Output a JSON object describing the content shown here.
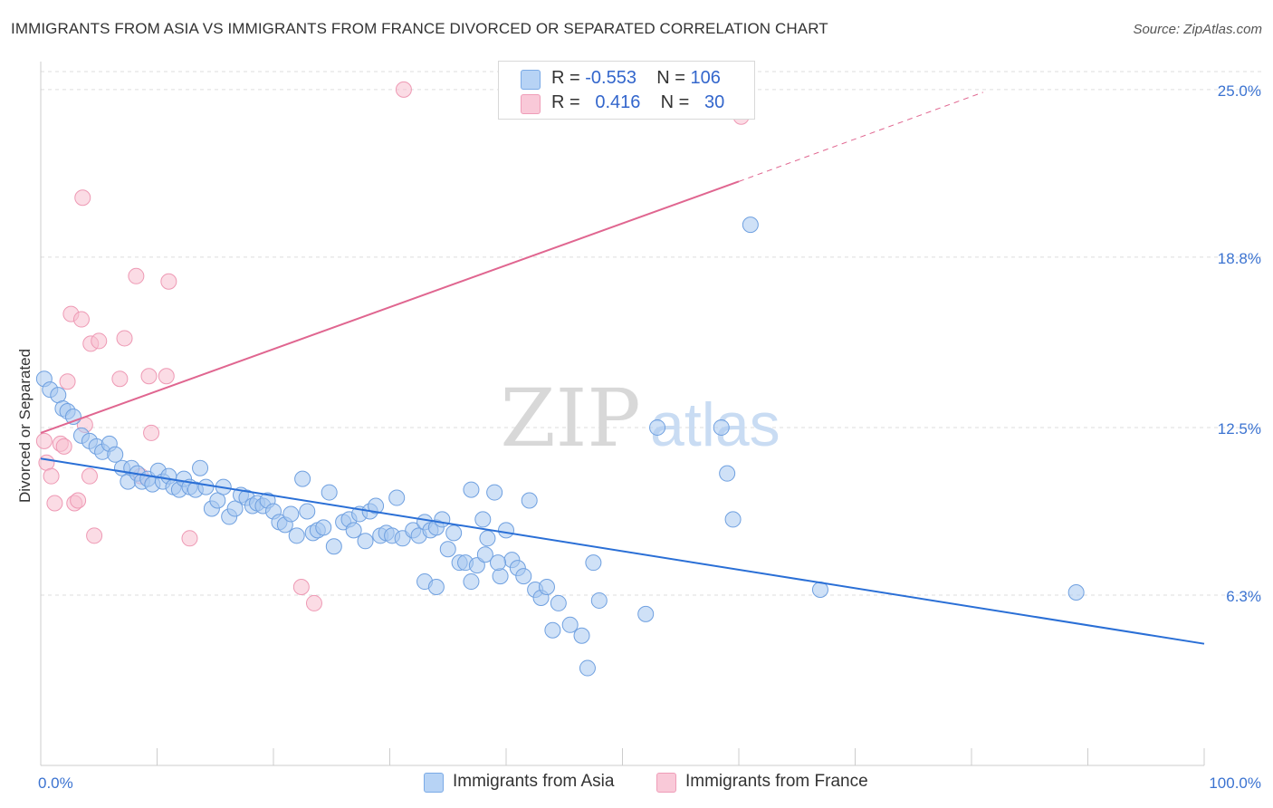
{
  "header": {
    "title": "IMMIGRANTS FROM ASIA VS IMMIGRANTS FROM FRANCE DIVORCED OR SEPARATED CORRELATION CHART",
    "source": "Source: ZipAtlas.com"
  },
  "watermark": {
    "zip": "ZIP",
    "atlas": "atlas"
  },
  "legend": {
    "asia": {
      "r_label": "R =",
      "r_value": "-0.553",
      "n_label": "N =",
      "n_value": "106"
    },
    "france": {
      "r_label": "R =",
      "r_value": "0.416",
      "n_label": "N =",
      "n_value": "30"
    }
  },
  "bottom_legend": {
    "asia": "Immigrants from Asia",
    "france": "Immigrants from France"
  },
  "colors": {
    "asia_fill": "#a8c8f0",
    "asia_stroke": "#6fa0e0",
    "asia_line": "#2a6fd6",
    "france_fill": "#f7bfd0",
    "france_stroke": "#ee99b4",
    "france_line": "#e06690",
    "axis_text": "#3b73d1",
    "grid": "#dddddd"
  },
  "chart_data": {
    "type": "scatter",
    "title": "IMMIGRANTS FROM ASIA VS IMMIGRANTS FROM FRANCE DIVORCED OR SEPARATED CORRELATION CHART",
    "xlabel": "",
    "ylabel": "Divorced or Separated",
    "xlim": [
      0,
      100
    ],
    "ylim": [
      0,
      25.8
    ],
    "x_tick_labels": [
      "0.0%",
      "100.0%"
    ],
    "y_ticks": [
      6.3,
      12.5,
      18.8,
      25.0
    ],
    "y_tick_labels": [
      "6.3%",
      "12.5%",
      "18.8%",
      "25.0%"
    ],
    "grid": true,
    "legend_position": "top-center",
    "series": [
      {
        "name": "Immigrants from Asia",
        "R": -0.553,
        "N": 106,
        "trend": {
          "x": [
            0,
            100
          ],
          "y": [
            11.35,
            4.5
          ]
        },
        "points": [
          [
            0.3,
            14.3
          ],
          [
            0.8,
            13.9
          ],
          [
            1.5,
            13.7
          ],
          [
            1.9,
            13.2
          ],
          [
            2.3,
            13.1
          ],
          [
            2.8,
            12.9
          ],
          [
            3.5,
            12.2
          ],
          [
            4.2,
            12.0
          ],
          [
            4.8,
            11.8
          ],
          [
            5.3,
            11.6
          ],
          [
            5.9,
            11.9
          ],
          [
            6.4,
            11.5
          ],
          [
            7.0,
            11.0
          ],
          [
            7.5,
            10.5
          ],
          [
            7.8,
            11.0
          ],
          [
            8.3,
            10.8
          ],
          [
            8.7,
            10.5
          ],
          [
            9.2,
            10.6
          ],
          [
            9.6,
            10.4
          ],
          [
            10.1,
            10.9
          ],
          [
            10.5,
            10.5
          ],
          [
            11.0,
            10.7
          ],
          [
            11.4,
            10.3
          ],
          [
            11.9,
            10.2
          ],
          [
            12.3,
            10.6
          ],
          [
            12.8,
            10.3
          ],
          [
            13.3,
            10.2
          ],
          [
            13.7,
            11.0
          ],
          [
            14.2,
            10.3
          ],
          [
            14.7,
            9.5
          ],
          [
            15.2,
            9.8
          ],
          [
            15.7,
            10.3
          ],
          [
            16.2,
            9.2
          ],
          [
            16.7,
            9.5
          ],
          [
            17.2,
            10.0
          ],
          [
            17.7,
            9.9
          ],
          [
            18.2,
            9.6
          ],
          [
            18.6,
            9.7
          ],
          [
            19.1,
            9.6
          ],
          [
            19.5,
            9.8
          ],
          [
            20.0,
            9.4
          ],
          [
            20.5,
            9.0
          ],
          [
            21.0,
            8.9
          ],
          [
            21.5,
            9.3
          ],
          [
            22.0,
            8.5
          ],
          [
            22.5,
            10.6
          ],
          [
            22.9,
            9.4
          ],
          [
            23.4,
            8.6
          ],
          [
            23.8,
            8.7
          ],
          [
            24.3,
            8.8
          ],
          [
            24.8,
            10.1
          ],
          [
            25.2,
            8.1
          ],
          [
            26.0,
            9.0
          ],
          [
            26.5,
            9.1
          ],
          [
            26.9,
            8.7
          ],
          [
            27.4,
            9.3
          ],
          [
            27.9,
            8.3
          ],
          [
            28.3,
            9.4
          ],
          [
            28.8,
            9.6
          ],
          [
            29.2,
            8.5
          ],
          [
            29.7,
            8.6
          ],
          [
            30.2,
            8.5
          ],
          [
            30.6,
            9.9
          ],
          [
            31.1,
            8.4
          ],
          [
            32.0,
            8.7
          ],
          [
            32.5,
            8.5
          ],
          [
            33.0,
            9.0
          ],
          [
            33.5,
            8.7
          ],
          [
            34.0,
            8.8
          ],
          [
            34.5,
            9.1
          ],
          [
            35.0,
            8.0
          ],
          [
            35.5,
            8.6
          ],
          [
            36.0,
            7.5
          ],
          [
            36.5,
            7.5
          ],
          [
            37.0,
            6.8
          ],
          [
            37.5,
            7.4
          ],
          [
            38.0,
            9.1
          ],
          [
            38.4,
            8.4
          ],
          [
            39.0,
            10.1
          ],
          [
            39.5,
            7.0
          ],
          [
            40.0,
            8.7
          ],
          [
            40.5,
            7.6
          ],
          [
            41.0,
            7.3
          ],
          [
            41.5,
            7.0
          ],
          [
            42.0,
            9.8
          ],
          [
            42.5,
            6.5
          ],
          [
            43.0,
            6.2
          ],
          [
            43.5,
            6.6
          ],
          [
            44.0,
            5.0
          ],
          [
            44.5,
            6.0
          ],
          [
            33.0,
            6.8
          ],
          [
            34.0,
            6.6
          ],
          [
            37.0,
            10.2
          ],
          [
            38.2,
            7.8
          ],
          [
            39.3,
            7.5
          ],
          [
            45.5,
            5.2
          ],
          [
            46.5,
            4.8
          ],
          [
            47.5,
            7.5
          ],
          [
            48.0,
            6.1
          ],
          [
            47.0,
            3.6
          ],
          [
            52.0,
            5.6
          ],
          [
            53.0,
            12.5
          ],
          [
            58.5,
            12.5
          ],
          [
            59.0,
            10.8
          ],
          [
            59.5,
            9.1
          ],
          [
            61.0,
            20.0
          ],
          [
            67.0,
            6.5
          ],
          [
            89.0,
            6.4
          ]
        ]
      },
      {
        "name": "Immigrants from France",
        "R": 0.416,
        "N": 30,
        "trend": {
          "x": [
            0,
            60
          ],
          "y": [
            12.3,
            21.6
          ],
          "dashed_to": {
            "x": 81,
            "y": 24.9
          }
        },
        "points": [
          [
            0.3,
            12.0
          ],
          [
            0.5,
            11.2
          ],
          [
            0.9,
            10.7
          ],
          [
            1.2,
            9.7
          ],
          [
            1.7,
            11.9
          ],
          [
            2.0,
            11.8
          ],
          [
            2.3,
            14.2
          ],
          [
            2.6,
            16.7
          ],
          [
            2.9,
            9.7
          ],
          [
            3.2,
            9.8
          ],
          [
            3.5,
            16.5
          ],
          [
            3.6,
            21.0
          ],
          [
            3.8,
            12.6
          ],
          [
            4.2,
            10.7
          ],
          [
            4.3,
            15.6
          ],
          [
            4.6,
            8.5
          ],
          [
            5.0,
            15.7
          ],
          [
            6.8,
            14.3
          ],
          [
            7.2,
            15.8
          ],
          [
            8.2,
            18.1
          ],
          [
            8.6,
            10.7
          ],
          [
            9.3,
            14.4
          ],
          [
            9.5,
            12.3
          ],
          [
            10.8,
            14.4
          ],
          [
            11.0,
            17.9
          ],
          [
            12.8,
            8.4
          ],
          [
            22.4,
            6.6
          ],
          [
            23.5,
            6.0
          ],
          [
            31.2,
            25.0
          ],
          [
            60.2,
            24.0
          ]
        ]
      }
    ]
  }
}
